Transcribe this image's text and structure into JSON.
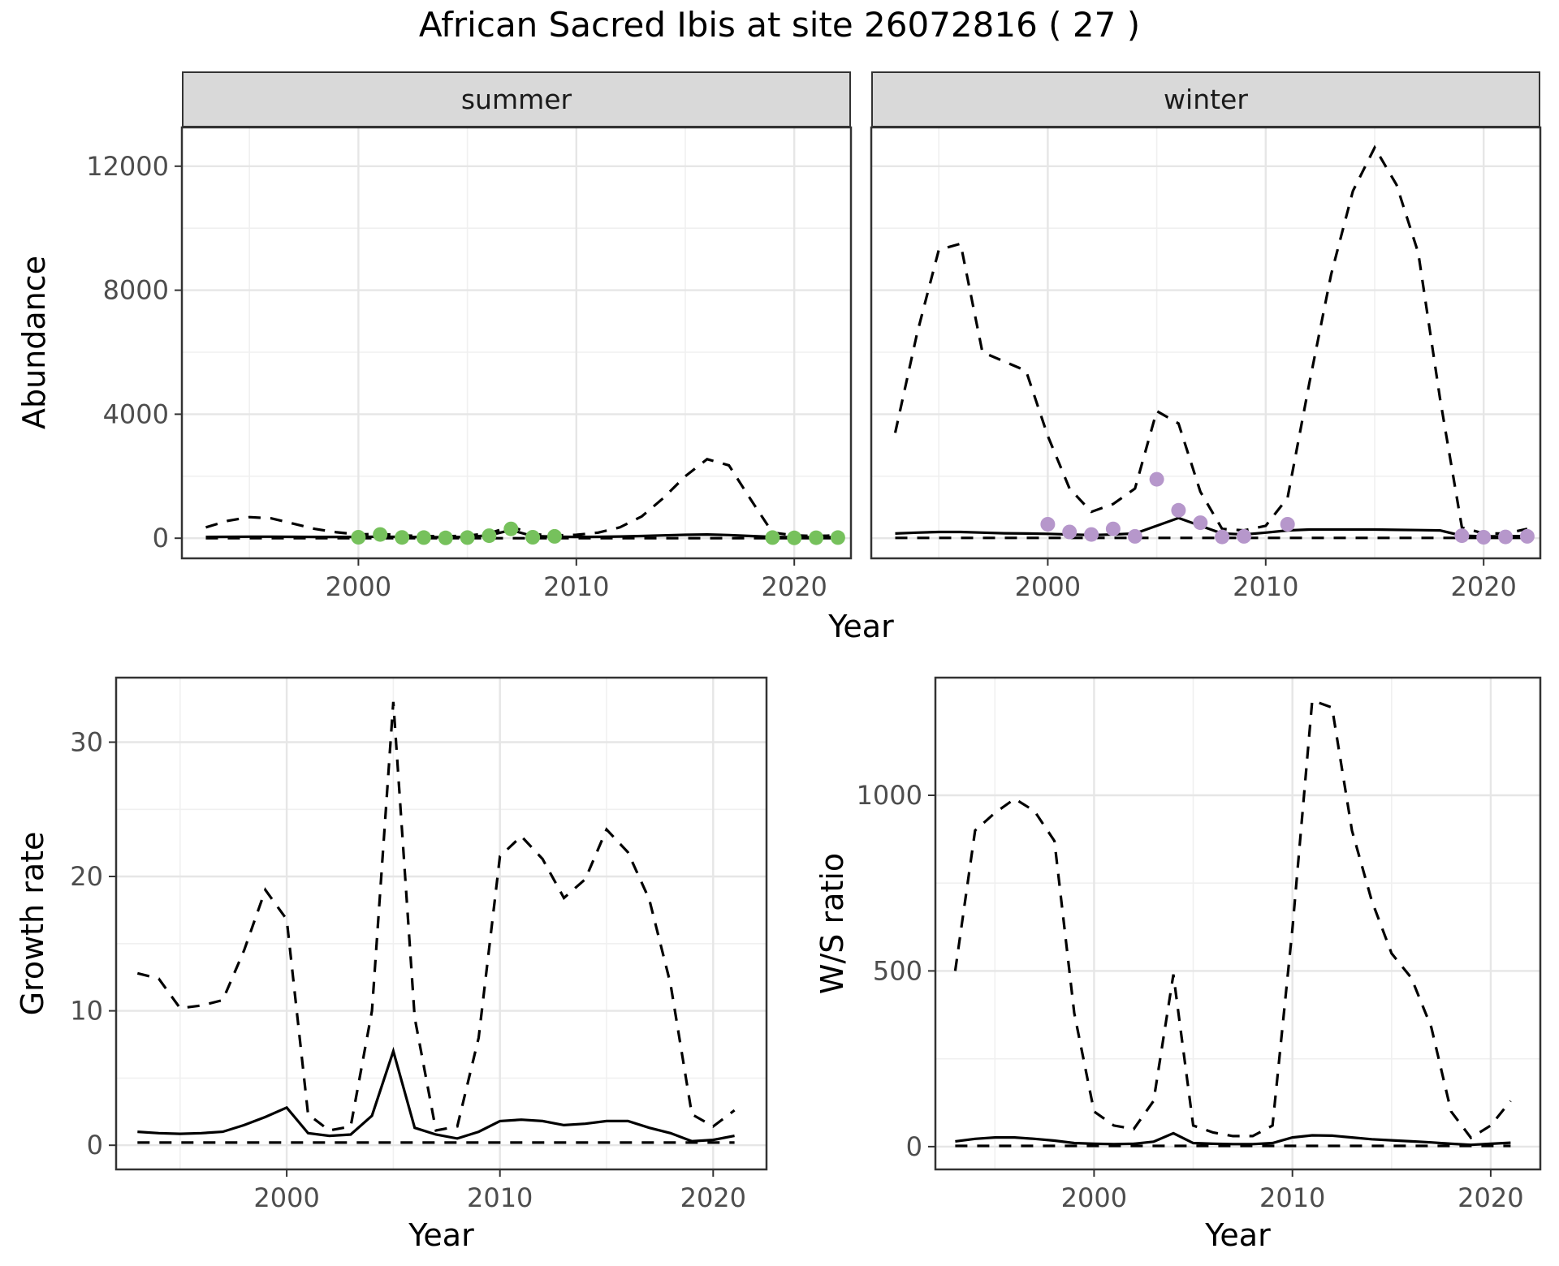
{
  "title": "African Sacred Ibis at site 26072816 ( 27 )",
  "colors": {
    "summer_point": "#76c15c",
    "winter_point": "#b697cb",
    "line": "#000000",
    "strip_bg": "#d9d9d9",
    "grid_major": "#e6e6e6",
    "grid_minor": "#f0f0f0"
  },
  "chart_data": [
    {
      "id": "abundance-summer",
      "type": "line",
      "facet": "summer",
      "xlabel": "Year",
      "ylabel": "Abundance",
      "xlim": [
        1991.9,
        2022.6
      ],
      "ylim": [
        -650,
        13250
      ],
      "xticks": [
        2000,
        2010,
        2020
      ],
      "xminor": [
        1995,
        2005,
        2015
      ],
      "yticks": [
        0,
        4000,
        8000,
        12000
      ],
      "yminor": [
        2000,
        6000,
        10000
      ],
      "years": [
        1993,
        1994,
        1995,
        1996,
        1997,
        1998,
        1999,
        2000,
        2001,
        2002,
        2003,
        2004,
        2005,
        2006,
        2007,
        2008,
        2009,
        2010,
        2011,
        2012,
        2013,
        2014,
        2015,
        2016,
        2017,
        2018,
        2019,
        2020,
        2021,
        2022
      ],
      "series": [
        {
          "name": "upper-ci",
          "style": "dashed",
          "y": [
            350,
            560,
            680,
            640,
            470,
            300,
            190,
            120,
            140,
            90,
            70,
            60,
            80,
            160,
            380,
            130,
            90,
            110,
            180,
            350,
            700,
            1300,
            2000,
            2550,
            2350,
            1250,
            180,
            90,
            70,
            90
          ]
        },
        {
          "name": "lower-ci",
          "style": "dashed",
          "y": [
            0,
            0,
            0,
            0,
            0,
            0,
            0,
            0,
            0,
            0,
            0,
            0,
            0,
            0,
            0,
            0,
            0,
            0,
            0,
            0,
            0,
            0,
            0,
            0,
            0,
            0,
            0,
            0,
            0,
            0
          ]
        },
        {
          "name": "fit",
          "style": "solid",
          "y": [
            40,
            45,
            50,
            50,
            45,
            40,
            40,
            40,
            50,
            40,
            35,
            30,
            40,
            90,
            260,
            70,
            50,
            40,
            45,
            55,
            70,
            90,
            110,
            120,
            100,
            70,
            40,
            30,
            30,
            35
          ]
        }
      ],
      "points": {
        "name": "observations",
        "color": "#76c15c",
        "x": [
          2000,
          2001,
          2002,
          2003,
          2004,
          2005,
          2006,
          2007,
          2008,
          2009,
          2019,
          2020,
          2021,
          2022
        ],
        "y": [
          30,
          120,
          25,
          20,
          10,
          20,
          80,
          300,
          30,
          60,
          20,
          10,
          15,
          20
        ]
      }
    },
    {
      "id": "abundance-winter",
      "type": "line",
      "facet": "winter",
      "xlabel": "Year",
      "ylabel": "Abundance",
      "xlim": [
        1991.9,
        2022.6
      ],
      "ylim": [
        -650,
        13250
      ],
      "xticks": [
        2000,
        2010,
        2020
      ],
      "xminor": [
        1995,
        2005,
        2015
      ],
      "yticks": [
        0,
        4000,
        8000,
        12000
      ],
      "yminor": [
        2000,
        6000,
        10000
      ],
      "years": [
        1993,
        1994,
        1995,
        1996,
        1997,
        1998,
        1999,
        2000,
        2001,
        2002,
        2003,
        2004,
        2005,
        2006,
        2007,
        2008,
        2009,
        2010,
        2011,
        2012,
        2013,
        2014,
        2015,
        2016,
        2017,
        2018,
        2019,
        2020,
        2021,
        2022
      ],
      "series": [
        {
          "name": "upper-ci",
          "style": "dashed",
          "y": [
            3400,
            6600,
            9300,
            9500,
            6000,
            5700,
            5400,
            3300,
            1600,
            850,
            1100,
            1600,
            4100,
            3700,
            1500,
            300,
            250,
            400,
            1300,
            5000,
            8500,
            11200,
            12600,
            11400,
            9200,
            4500,
            350,
            150,
            150,
            300
          ]
        },
        {
          "name": "lower-ci",
          "style": "dashed",
          "y": [
            10,
            10,
            10,
            10,
            10,
            10,
            10,
            10,
            10,
            10,
            10,
            10,
            10,
            10,
            10,
            10,
            10,
            10,
            10,
            10,
            10,
            10,
            10,
            10,
            10,
            10,
            10,
            10,
            10,
            10
          ]
        },
        {
          "name": "fit",
          "style": "solid",
          "y": [
            150,
            180,
            200,
            200,
            180,
            160,
            150,
            140,
            120,
            100,
            120,
            150,
            400,
            650,
            400,
            150,
            120,
            180,
            250,
            280,
            280,
            280,
            280,
            270,
            260,
            250,
            80,
            60,
            60,
            70
          ]
        }
      ],
      "points": {
        "name": "observations",
        "color": "#b697cb",
        "x": [
          2000,
          2001,
          2002,
          2003,
          2004,
          2005,
          2006,
          2007,
          2008,
          2009,
          2011,
          2019,
          2020,
          2021,
          2022
        ],
        "y": [
          450,
          200,
          120,
          300,
          60,
          1900,
          900,
          500,
          40,
          60,
          450,
          80,
          30,
          40,
          60
        ]
      }
    },
    {
      "id": "growth-rate",
      "type": "line",
      "facet": "",
      "xlabel": "Year",
      "ylabel": "Growth rate",
      "xlim": [
        1992.0,
        2022.5
      ],
      "ylim": [
        -1.8,
        34.8
      ],
      "xticks": [
        2000,
        2010,
        2020
      ],
      "xminor": [
        1995,
        2005,
        2015
      ],
      "yticks": [
        0,
        10,
        20,
        30
      ],
      "yminor": [
        5,
        15,
        25
      ],
      "years": [
        1993,
        1994,
        1995,
        1996,
        1997,
        1998,
        1999,
        2000,
        2001,
        2002,
        2003,
        2004,
        2005,
        2006,
        2007,
        2008,
        2009,
        2010,
        2011,
        2012,
        2013,
        2014,
        2015,
        2016,
        2017,
        2018,
        2019,
        2020,
        2021
      ],
      "series": [
        {
          "name": "upper-ci",
          "style": "dashed",
          "y": [
            12.8,
            12.4,
            10.2,
            10.4,
            10.8,
            14.5,
            19.0,
            16.8,
            2.3,
            1.1,
            1.4,
            10.0,
            33.0,
            9.5,
            1.1,
            1.4,
            8.0,
            21.5,
            23.0,
            21.3,
            18.4,
            19.8,
            23.5,
            21.8,
            18.3,
            12.0,
            2.3,
            1.4,
            2.6
          ]
        },
        {
          "name": "lower-ci",
          "style": "dashed",
          "y": [
            0.2,
            0.2,
            0.2,
            0.2,
            0.2,
            0.2,
            0.2,
            0.2,
            0.2,
            0.2,
            0.2,
            0.2,
            0.2,
            0.2,
            0.2,
            0.2,
            0.2,
            0.2,
            0.2,
            0.2,
            0.2,
            0.2,
            0.2,
            0.2,
            0.2,
            0.2,
            0.2,
            0.2,
            0.2
          ]
        },
        {
          "name": "fit",
          "style": "solid",
          "y": [
            1.0,
            0.9,
            0.85,
            0.9,
            1.0,
            1.5,
            2.1,
            2.8,
            0.9,
            0.7,
            0.8,
            2.2,
            7.0,
            1.3,
            0.8,
            0.5,
            1.0,
            1.8,
            1.9,
            1.8,
            1.5,
            1.6,
            1.8,
            1.8,
            1.3,
            0.9,
            0.3,
            0.4,
            0.7
          ]
        }
      ],
      "points": null
    },
    {
      "id": "ws-ratio",
      "type": "line",
      "facet": "",
      "xlabel": "Year",
      "ylabel": "W/S ratio",
      "xlim": [
        1992.0,
        2022.5
      ],
      "ylim": [
        -65,
        1335
      ],
      "xticks": [
        2000,
        2010,
        2020
      ],
      "xminor": [
        1995,
        2005,
        2015
      ],
      "yticks": [
        0,
        500,
        1000
      ],
      "yminor": [
        250,
        750
      ],
      "years": [
        1993,
        1994,
        1995,
        1996,
        1997,
        1998,
        1999,
        2000,
        2001,
        2002,
        2003,
        2004,
        2005,
        2006,
        2007,
        2008,
        2009,
        2010,
        2011,
        2012,
        2013,
        2014,
        2015,
        2016,
        2017,
        2018,
        2019,
        2020,
        2021
      ],
      "series": [
        {
          "name": "upper-ci",
          "style": "dashed",
          "y": [
            500,
            900,
            950,
            990,
            955,
            870,
            380,
            100,
            60,
            50,
            130,
            490,
            60,
            40,
            30,
            30,
            60,
            620,
            1270,
            1250,
            900,
            700,
            550,
            480,
            340,
            100,
            25,
            60,
            130
          ]
        },
        {
          "name": "lower-ci",
          "style": "dashed",
          "y": [
            2,
            2,
            2,
            2,
            2,
            2,
            2,
            2,
            2,
            2,
            2,
            2,
            2,
            2,
            2,
            2,
            2,
            2,
            2,
            2,
            2,
            2,
            2,
            2,
            2,
            2,
            2,
            2,
            2
          ]
        },
        {
          "name": "fit",
          "style": "solid",
          "y": [
            15,
            22,
            26,
            26,
            22,
            17,
            10,
            8,
            7,
            8,
            14,
            38,
            10,
            8,
            7,
            7,
            10,
            26,
            32,
            31,
            26,
            21,
            18,
            15,
            12,
            8,
            5,
            8,
            11
          ]
        }
      ],
      "points": null
    }
  ]
}
